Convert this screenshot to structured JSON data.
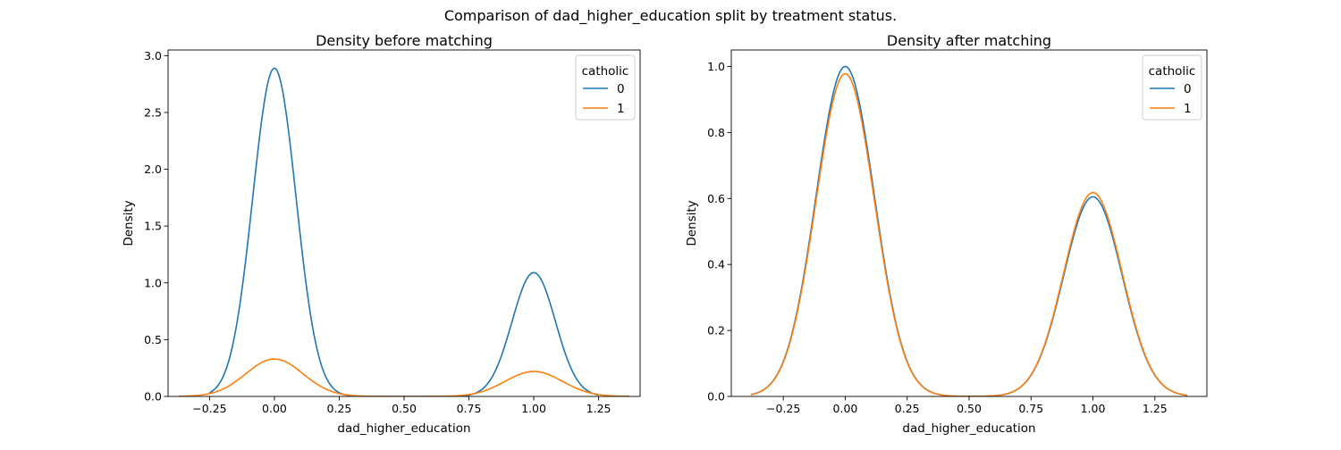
{
  "figure": {
    "title": "Comparison of dad_higher_education split by treatment status."
  },
  "chart_data": [
    {
      "type": "line",
      "title": "Density before matching",
      "xlabel": "dad_higher_education",
      "ylabel": "Density",
      "xlim": [
        -0.41,
        1.41
      ],
      "ylim": [
        0,
        3.05
      ],
      "xticks": [
        -0.25,
        0.0,
        0.25,
        0.5,
        0.75,
        1.0,
        1.25
      ],
      "xtick_labels": [
        "−0.25",
        "0.00",
        "0.25",
        "0.50",
        "0.75",
        "1.00",
        "1.25"
      ],
      "yticks": [
        0.0,
        0.5,
        1.0,
        1.5,
        2.0,
        2.5,
        3.0
      ],
      "ytick_labels": [
        "0.0",
        "0.5",
        "1.0",
        "1.5",
        "2.0",
        "2.5",
        "3.0"
      ],
      "grid": false,
      "legend": {
        "title": "catholic",
        "position": "top-right"
      },
      "series": [
        {
          "name": "0",
          "color": "#1f77b4",
          "x_range": [
            -0.25,
            1.25
          ],
          "peaks": [
            {
              "x": 0.0,
              "height": 2.89,
              "sd": 0.0835
            },
            {
              "x": 1.0,
              "height": 1.09,
              "sd": 0.0835
            }
          ]
        },
        {
          "name": "1",
          "color": "#ff7f0e",
          "x_range": [
            -0.37,
            1.37
          ],
          "peaks": [
            {
              "x": 0.0,
              "height": 0.33,
              "sd": 0.11
            },
            {
              "x": 1.0,
              "height": 0.22,
              "sd": 0.11
            }
          ]
        }
      ]
    },
    {
      "type": "line",
      "title": "Density after matching",
      "xlabel": "dad_higher_education",
      "ylabel": "Density",
      "xlim": [
        -0.46,
        1.46
      ],
      "ylim": [
        0,
        1.05
      ],
      "xticks": [
        -0.25,
        0.0,
        0.25,
        0.5,
        0.75,
        1.0,
        1.25
      ],
      "xtick_labels": [
        "−0.25",
        "0.00",
        "0.25",
        "0.50",
        "0.75",
        "1.00",
        "1.25"
      ],
      "yticks": [
        0.0,
        0.2,
        0.4,
        0.6,
        0.8,
        1.0
      ],
      "ytick_labels": [
        "0.0",
        "0.2",
        "0.4",
        "0.6",
        "0.8",
        "1.0"
      ],
      "grid": false,
      "legend": {
        "title": "catholic",
        "position": "top-right"
      },
      "series": [
        {
          "name": "0",
          "color": "#1f77b4",
          "x_range": [
            -0.38,
            1.38
          ],
          "peaks": [
            {
              "x": 0.0,
              "height": 1.0,
              "sd": 0.118
            },
            {
              "x": 1.0,
              "height": 0.605,
              "sd": 0.118
            }
          ]
        },
        {
          "name": "1",
          "color": "#ff7f0e",
          "x_range": [
            -0.38,
            1.38
          ],
          "peaks": [
            {
              "x": 0.0,
              "height": 0.978,
              "sd": 0.118
            },
            {
              "x": 1.0,
              "height": 0.618,
              "sd": 0.118
            }
          ]
        }
      ]
    }
  ]
}
